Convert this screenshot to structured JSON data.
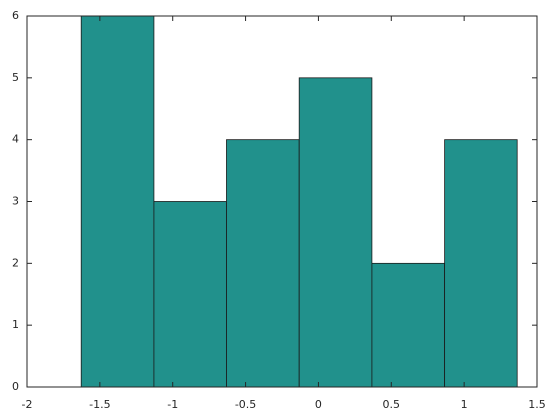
{
  "chart_data": {
    "type": "histogram",
    "bins": [
      -1.628,
      -1.129,
      -0.631,
      -0.132,
      0.367,
      0.866,
      1.364
    ],
    "values": [
      6,
      3,
      4,
      5,
      2,
      4
    ],
    "color": "#21918c",
    "xlim": [
      -2,
      1.5
    ],
    "xticks": [
      -2,
      -1.5,
      -1,
      -0.5,
      0,
      0.5,
      1,
      1.5
    ],
    "ylim": [
      0,
      6
    ],
    "yticks": [
      0,
      1,
      2,
      3,
      4,
      5,
      6
    ]
  }
}
